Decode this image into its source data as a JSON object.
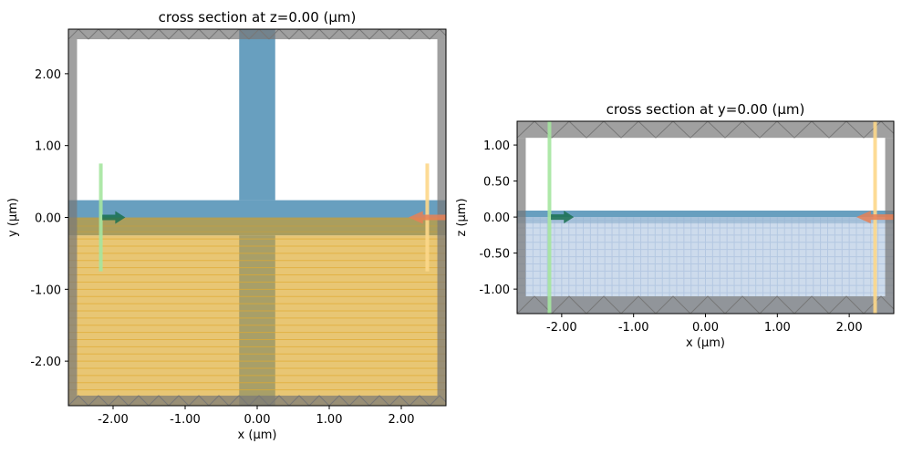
{
  "chart_data": [
    {
      "type": "diagram",
      "title": "cross section at z=0.00 (μm)",
      "xlabel": "x (μm)",
      "ylabel": "y (μm)",
      "xlim": [
        -2.62,
        2.62
      ],
      "ylim": [
        -2.62,
        2.62
      ],
      "xticks": [
        "-2.00",
        "-1.00",
        "0.00",
        "1.00",
        "2.00"
      ],
      "xtick_values": [
        -2,
        -1,
        0,
        1,
        2
      ],
      "yticks": [
        "2.00",
        "1.00",
        "0.00",
        "-1.00",
        "-2.00"
      ],
      "ytick_values": [
        2,
        1,
        0,
        -1,
        -2
      ],
      "structures": [
        {
          "name": "substrate",
          "x": [
            -2.62,
            2.62
          ],
          "y": [
            -2.62,
            -0.25
          ],
          "color": "#e8c674"
        },
        {
          "name": "slab-overlap",
          "x": [
            -2.62,
            2.62
          ],
          "y": [
            -0.25,
            0
          ],
          "color": "#aa9e5e"
        },
        {
          "name": "horizontal-waveguide",
          "x": [
            -2.62,
            2.62
          ],
          "y": [
            0,
            0.24
          ],
          "color": "#689fbf"
        },
        {
          "name": "vertical-waveguide",
          "x": [
            -0.25,
            0.25
          ],
          "y": [
            0.24,
            2.62
          ],
          "color": "#689fbf"
        },
        {
          "name": "vertical-waveguide-lower",
          "x": [
            -0.25,
            0.25
          ],
          "y": [
            -2.62,
            -0.25
          ],
          "color": "#a89f68"
        }
      ],
      "pml_inner": {
        "x": [
          -2.5,
          2.5
        ],
        "y": [
          -2.48,
          2.48
        ]
      },
      "source": {
        "x": -2.17,
        "y": [
          -0.75,
          0.75
        ],
        "color": "#a6e6a0",
        "arrow_color": "#1a7050"
      },
      "monitor": {
        "x": 2.36,
        "y": [
          -0.75,
          0.75
        ],
        "color": "#fdd88a",
        "arrow_color": "#e88055"
      }
    },
    {
      "type": "diagram",
      "title": "cross section at y=0.00 (μm)",
      "xlabel": "x (μm)",
      "ylabel": "z (μm)",
      "xlim": [
        -2.62,
        2.62
      ],
      "ylim": [
        -1.34,
        1.33
      ],
      "xticks": [
        "-2.00",
        "-1.00",
        "0.00",
        "1.00",
        "2.00"
      ],
      "xtick_values": [
        -2,
        -1,
        0,
        1,
        2
      ],
      "yticks": [
        "1.00",
        "0.50",
        "0.00",
        "-0.50",
        "-1.00"
      ],
      "ytick_values": [
        1,
        0.5,
        0,
        -0.5,
        -1
      ],
      "structures": [
        {
          "name": "substrate",
          "x": [
            -2.62,
            2.62
          ],
          "y": [
            -1.34,
            0
          ],
          "color": "#cddbec"
        },
        {
          "name": "waveguide",
          "x": [
            -2.62,
            2.62
          ],
          "y": [
            0,
            0.09
          ],
          "color": "#689fbf"
        }
      ],
      "pml_inner": {
        "x": [
          -2.5,
          2.5
        ],
        "y": [
          -1.1,
          1.1
        ]
      },
      "source": {
        "x": -2.17,
        "y": [
          -1.34,
          1.33
        ],
        "color": "#a6e6a0",
        "arrow_color": "#1a7050"
      },
      "monitor": {
        "x": 2.36,
        "y": [
          -1.34,
          1.33
        ],
        "color": "#fdd88a",
        "arrow_color": "#e88055"
      }
    }
  ]
}
